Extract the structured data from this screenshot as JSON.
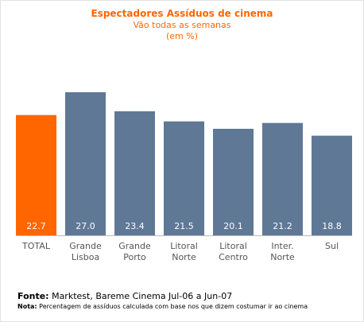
{
  "chart_data": {
    "type": "bar",
    "title": "Espectadores Assíduos de cinema",
    "subtitle": "Vão todas as semanas",
    "unit": "(em %)",
    "categories": [
      [
        "TOTAL"
      ],
      [
        "Grande",
        "Lisboa"
      ],
      [
        "Grande",
        "Porto"
      ],
      [
        "Litoral",
        "Norte"
      ],
      [
        "Litoral",
        "Centro"
      ],
      [
        "Inter.",
        "Norte"
      ],
      [
        "Sul"
      ]
    ],
    "values": [
      22.7,
      27.0,
      23.4,
      21.5,
      20.1,
      21.2,
      18.8
    ],
    "value_labels": [
      "22.7",
      "27.0",
      "23.4",
      "21.5",
      "20.1",
      "21.2",
      "18.8"
    ],
    "ylim": [
      0,
      30
    ],
    "grid": false,
    "colors": {
      "highlight": "#ff6600",
      "bar": "#5f7896",
      "value_text": "#ffffff",
      "category_text": "#555555",
      "baseline": "#bbbbbb"
    },
    "highlight_index": 0
  },
  "footer": {
    "source_label": "Fonte:",
    "source_text": " Marktest, Bareme Cinema Jul-06 a Jun-07",
    "note_label": "Nota:",
    "note_text": " Percentagem de assíduos calculada com base nos que dizem costumar ir ao cinema"
  }
}
